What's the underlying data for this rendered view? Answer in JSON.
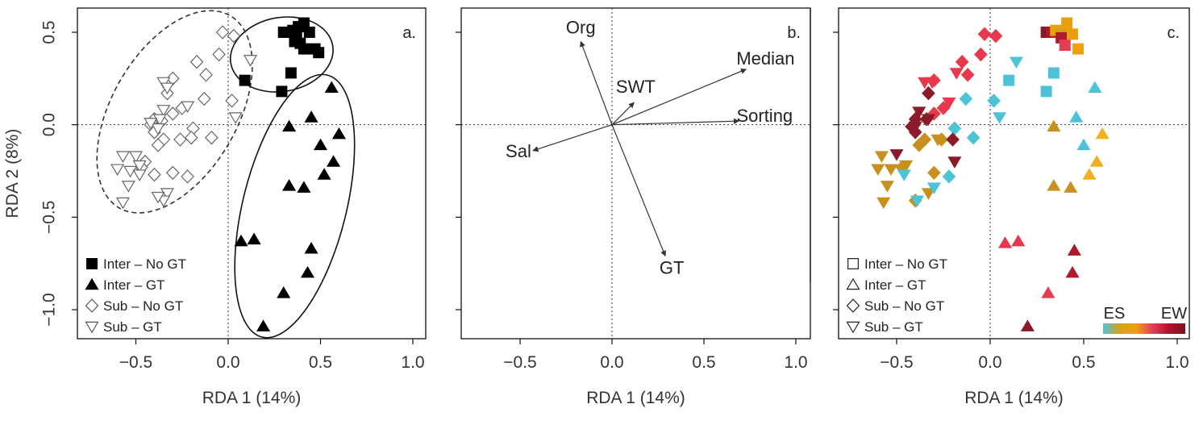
{
  "chart_data": [
    {
      "type": "scatter",
      "panel_label": "a.",
      "xlabel": "RDA 1 (14%)",
      "ylabel": "RDA 2 (8%)",
      "xlim": [
        -0.8,
        1.1
      ],
      "ylim": [
        -1.15,
        0.6
      ],
      "xticks": [
        -0.5,
        0.0,
        0.5,
        1.0
      ],
      "yticks": [
        0.5,
        0.0,
        -0.5,
        -1.0
      ],
      "xtick_labels": [
        "−0.5",
        "0.0",
        "0.5",
        "1.0"
      ],
      "ytick_labels": [
        "0.5",
        "0.0",
        "−0.5",
        "−1.0"
      ],
      "reference_lines": "dotted at x=0 and y=0",
      "legend": [
        "Inter – No GT",
        "Inter – GT",
        "Sub – No GT",
        "Sub – GT"
      ],
      "legend_position": "bottom-left",
      "series": [
        {
          "name": "Inter – No GT",
          "marker": "filled-square",
          "points": [
            [
              0.3,
              0.5
            ],
            [
              0.33,
              0.5
            ],
            [
              0.35,
              0.51
            ],
            [
              0.37,
              0.49
            ],
            [
              0.38,
              0.53
            ],
            [
              0.41,
              0.55
            ],
            [
              0.44,
              0.5
            ],
            [
              0.36,
              0.45
            ],
            [
              0.39,
              0.44
            ],
            [
              0.41,
              0.41
            ],
            [
              0.47,
              0.41
            ],
            [
              0.49,
              0.39
            ],
            [
              0.09,
              0.24
            ],
            [
              0.34,
              0.28
            ],
            [
              0.29,
              0.18
            ]
          ]
        },
        {
          "name": "Inter – GT",
          "marker": "filled-triangle",
          "points": [
            [
              0.56,
              0.2
            ],
            [
              0.45,
              0.04
            ],
            [
              0.33,
              -0.01
            ],
            [
              0.6,
              -0.05
            ],
            [
              0.5,
              -0.11
            ],
            [
              0.57,
              -0.2
            ],
            [
              0.52,
              -0.27
            ],
            [
              0.33,
              -0.33
            ],
            [
              0.41,
              -0.34
            ],
            [
              0.07,
              -0.63
            ],
            [
              0.14,
              -0.62
            ],
            [
              0.45,
              -0.67
            ],
            [
              0.43,
              -0.8
            ],
            [
              0.3,
              -0.91
            ],
            [
              0.19,
              -1.09
            ]
          ]
        },
        {
          "name": "Sub – No GT",
          "marker": "open-diamond",
          "points": [
            [
              -0.03,
              0.5
            ],
            [
              0.03,
              0.48
            ],
            [
              -0.05,
              0.38
            ],
            [
              -0.17,
              0.34
            ],
            [
              -0.12,
              0.27
            ],
            [
              -0.3,
              0.25
            ],
            [
              -0.33,
              0.17
            ],
            [
              0.02,
              0.13
            ],
            [
              -0.13,
              0.14
            ],
            [
              -0.25,
              0.09
            ],
            [
              -0.3,
              0.06
            ],
            [
              -0.4,
              0.03
            ],
            [
              -0.36,
              0.02
            ],
            [
              -0.19,
              -0.02
            ],
            [
              -0.42,
              0.0
            ],
            [
              -0.4,
              -0.04
            ],
            [
              -0.09,
              -0.07
            ],
            [
              -0.35,
              -0.08
            ],
            [
              -0.26,
              -0.08
            ],
            [
              -0.2,
              -0.07
            ],
            [
              -0.38,
              -0.11
            ],
            [
              -0.45,
              -0.2
            ],
            [
              -0.47,
              -0.23
            ],
            [
              -0.3,
              -0.26
            ],
            [
              -0.22,
              -0.28
            ],
            [
              -0.4,
              -0.27
            ]
          ]
        },
        {
          "name": "Sub – GT",
          "marker": "open-triangle-down",
          "points": [
            [
              0.12,
              0.35
            ],
            [
              -0.35,
              0.23
            ],
            [
              -0.33,
              0.2
            ],
            [
              -0.22,
              0.1
            ],
            [
              -0.35,
              0.08
            ],
            [
              -0.37,
              0.03
            ],
            [
              -0.38,
              -0.02
            ],
            [
              -0.42,
              0.01
            ],
            [
              0.04,
              0.04
            ],
            [
              -0.57,
              -0.17
            ],
            [
              -0.5,
              -0.17
            ],
            [
              -0.6,
              -0.24
            ],
            [
              -0.53,
              -0.25
            ],
            [
              -0.48,
              -0.22
            ],
            [
              -0.48,
              -0.27
            ],
            [
              -0.54,
              -0.33
            ],
            [
              -0.33,
              -0.37
            ],
            [
              -0.35,
              -0.41
            ],
            [
              -0.38,
              -0.39
            ],
            [
              -0.57,
              -0.42
            ]
          ]
        }
      ],
      "ellipses": [
        {
          "group": "Inter – No GT",
          "style": "solid",
          "cx": 0.29,
          "cy": 0.38,
          "rx": 0.28,
          "ry": 0.2,
          "angle": -10
        },
        {
          "group": "Inter – GT",
          "style": "solid",
          "cx": 0.36,
          "cy": -0.44,
          "rx": 0.28,
          "ry": 0.73,
          "angle": 14
        },
        {
          "group": "Sub",
          "style": "dashed",
          "cx": -0.29,
          "cy": 0.07,
          "rx": 0.34,
          "ry": 0.6,
          "angle": 30
        }
      ]
    },
    {
      "type": "biplot",
      "panel_label": "b.",
      "xlabel": "RDA 1 (14%)",
      "xlim": [
        -0.8,
        1.1
      ],
      "ylim": [
        -1.15,
        0.6
      ],
      "xticks": [
        -0.5,
        0.0,
        0.5,
        1.0
      ],
      "xtick_labels": [
        "−0.5",
        "0.0",
        "0.5",
        "1.0"
      ],
      "vectors": [
        {
          "name": "Org",
          "x": -0.17,
          "y": 0.45
        },
        {
          "name": "SWT",
          "x": 0.12,
          "y": 0.12
        },
        {
          "name": "Median",
          "x": 0.73,
          "y": 0.3
        },
        {
          "name": "Sorting",
          "x": 0.69,
          "y": 0.02
        },
        {
          "name": "Sal",
          "x": -0.43,
          "y": -0.14
        },
        {
          "name": "GT",
          "x": 0.29,
          "y": -0.71
        }
      ]
    },
    {
      "type": "scatter",
      "panel_label": "c.",
      "xlabel": "RDA 1 (14%)",
      "xlim": [
        -0.8,
        1.1
      ],
      "ylim": [
        -1.15,
        0.6
      ],
      "xticks": [
        -0.5,
        0.0,
        0.5,
        1.0
      ],
      "xtick_labels": [
        "−0.5",
        "0.0",
        "0.5",
        "1.0"
      ],
      "legend": [
        "Inter – No GT",
        "Inter – GT",
        "Sub – No GT",
        "Sub – GT"
      ],
      "legend_position": "bottom-left",
      "colorbar": {
        "low_label": "ES",
        "high_label": "EW",
        "colors": [
          "#4ec3d8",
          "#d4a21a",
          "#f0a010",
          "#e0405a",
          "#b0102a",
          "#801020"
        ]
      },
      "series": [
        {
          "name": "Inter – No GT",
          "marker": "square",
          "points": [
            [
              0.3,
              0.5,
              "#8b1a2a"
            ],
            [
              0.33,
              0.5,
              "#b0182e"
            ],
            [
              0.35,
              0.51,
              "#e8a010"
            ],
            [
              0.38,
              0.49,
              "#d4a21a"
            ],
            [
              0.41,
              0.55,
              "#e8a010"
            ],
            [
              0.38,
              0.47,
              "#b01830"
            ],
            [
              0.4,
              0.43,
              "#e83a50"
            ],
            [
              0.47,
              0.41,
              "#f0a010"
            ],
            [
              0.44,
              0.49,
              "#e8a010"
            ],
            [
              0.1,
              0.24,
              "#4ec3d8"
            ],
            [
              0.34,
              0.28,
              "#4ec3d8"
            ],
            [
              0.3,
              0.18,
              "#4ec3d8"
            ]
          ]
        },
        {
          "name": "Inter – GT",
          "marker": "triangle",
          "points": [
            [
              0.56,
              0.2,
              "#4ec3d8"
            ],
            [
              0.46,
              0.04,
              "#4ec3d8"
            ],
            [
              0.34,
              -0.01,
              "#c8901e"
            ],
            [
              0.6,
              -0.05,
              "#f0b020"
            ],
            [
              0.5,
              -0.11,
              "#4ec3d8"
            ],
            [
              0.57,
              -0.2,
              "#f0b020"
            ],
            [
              0.53,
              -0.27,
              "#f0b020"
            ],
            [
              0.34,
              -0.33,
              "#c8901e"
            ],
            [
              0.43,
              -0.34,
              "#c8901e"
            ],
            [
              0.08,
              -0.64,
              "#e8364e"
            ],
            [
              0.15,
              -0.63,
              "#e8364e"
            ],
            [
              0.45,
              -0.68,
              "#b01830"
            ],
            [
              0.44,
              -0.8,
              "#b01830"
            ],
            [
              0.31,
              -0.91,
              "#e83a50"
            ],
            [
              0.2,
              -1.09,
              "#8b1a2a"
            ]
          ]
        },
        {
          "name": "Sub – No GT",
          "marker": "diamond",
          "points": [
            [
              -0.03,
              0.49,
              "#e8384e"
            ],
            [
              0.03,
              0.48,
              "#e8384e"
            ],
            [
              -0.05,
              0.38,
              "#e8384e"
            ],
            [
              -0.15,
              0.34,
              "#e8384e"
            ],
            [
              -0.12,
              0.27,
              "#e8384e"
            ],
            [
              -0.3,
              0.24,
              "#e8384e"
            ],
            [
              -0.33,
              0.17,
              "#8b1a2a"
            ],
            [
              0.02,
              0.13,
              "#4ec3d8"
            ],
            [
              -0.13,
              0.14,
              "#4ec3d8"
            ],
            [
              -0.25,
              0.09,
              "#e8384e"
            ],
            [
              -0.3,
              0.06,
              "#e8384e"
            ],
            [
              -0.4,
              0.03,
              "#8b1a2a"
            ],
            [
              -0.34,
              0.03,
              "#8b1a2a"
            ],
            [
              -0.19,
              -0.02,
              "#4ec3d8"
            ],
            [
              -0.42,
              -0.01,
              "#8b1a2a"
            ],
            [
              -0.4,
              -0.04,
              "#8b1a2a"
            ],
            [
              -0.09,
              -0.07,
              "#4ec3d8"
            ],
            [
              -0.35,
              -0.08,
              "#c8901e"
            ],
            [
              -0.26,
              -0.08,
              "#c8901e"
            ],
            [
              -0.2,
              -0.08,
              "#8b1a2a"
            ],
            [
              -0.38,
              -0.11,
              "#c8901e"
            ],
            [
              -0.47,
              -0.23,
              "#c8901e"
            ],
            [
              -0.3,
              -0.26,
              "#c8901e"
            ],
            [
              -0.22,
              -0.28,
              "#4ec3d8"
            ],
            [
              -0.4,
              -0.41,
              "#c8901e"
            ]
          ]
        },
        {
          "name": "Sub – GT",
          "marker": "triangle-down",
          "points": [
            [
              0.14,
              0.34,
              "#4ec3d8"
            ],
            [
              -0.35,
              0.23,
              "#e8384e"
            ],
            [
              -0.31,
              0.23,
              "#e8384e"
            ],
            [
              -0.18,
              0.28,
              "#e8384e"
            ],
            [
              -0.22,
              0.12,
              "#e8384e"
            ],
            [
              -0.38,
              0.07,
              "#8b1a2a"
            ],
            [
              -0.33,
              0.03,
              "#8b1a2a"
            ],
            [
              -0.4,
              -0.01,
              "#8b1a2a"
            ],
            [
              0.05,
              0.04,
              "#4ec3d8"
            ],
            [
              -0.28,
              -0.08,
              "#c8901e"
            ],
            [
              -0.5,
              -0.16,
              "#8b1a2a"
            ],
            [
              -0.58,
              -0.17,
              "#c8901e"
            ],
            [
              -0.6,
              -0.24,
              "#c8901e"
            ],
            [
              -0.53,
              -0.24,
              "#c8901e"
            ],
            [
              -0.45,
              -0.22,
              "#c8901e"
            ],
            [
              -0.46,
              -0.27,
              "#4ec3d8"
            ],
            [
              -0.55,
              -0.33,
              "#c8901e"
            ],
            [
              -0.33,
              -0.37,
              "#c8901e"
            ],
            [
              -0.39,
              -0.41,
              "#4ec3d8"
            ],
            [
              -0.57,
              -0.42,
              "#c8901e"
            ],
            [
              -0.19,
              -0.2,
              "#8b1a2a"
            ],
            [
              -0.3,
              -0.34,
              "#4ec3d8"
            ]
          ]
        }
      ]
    }
  ]
}
